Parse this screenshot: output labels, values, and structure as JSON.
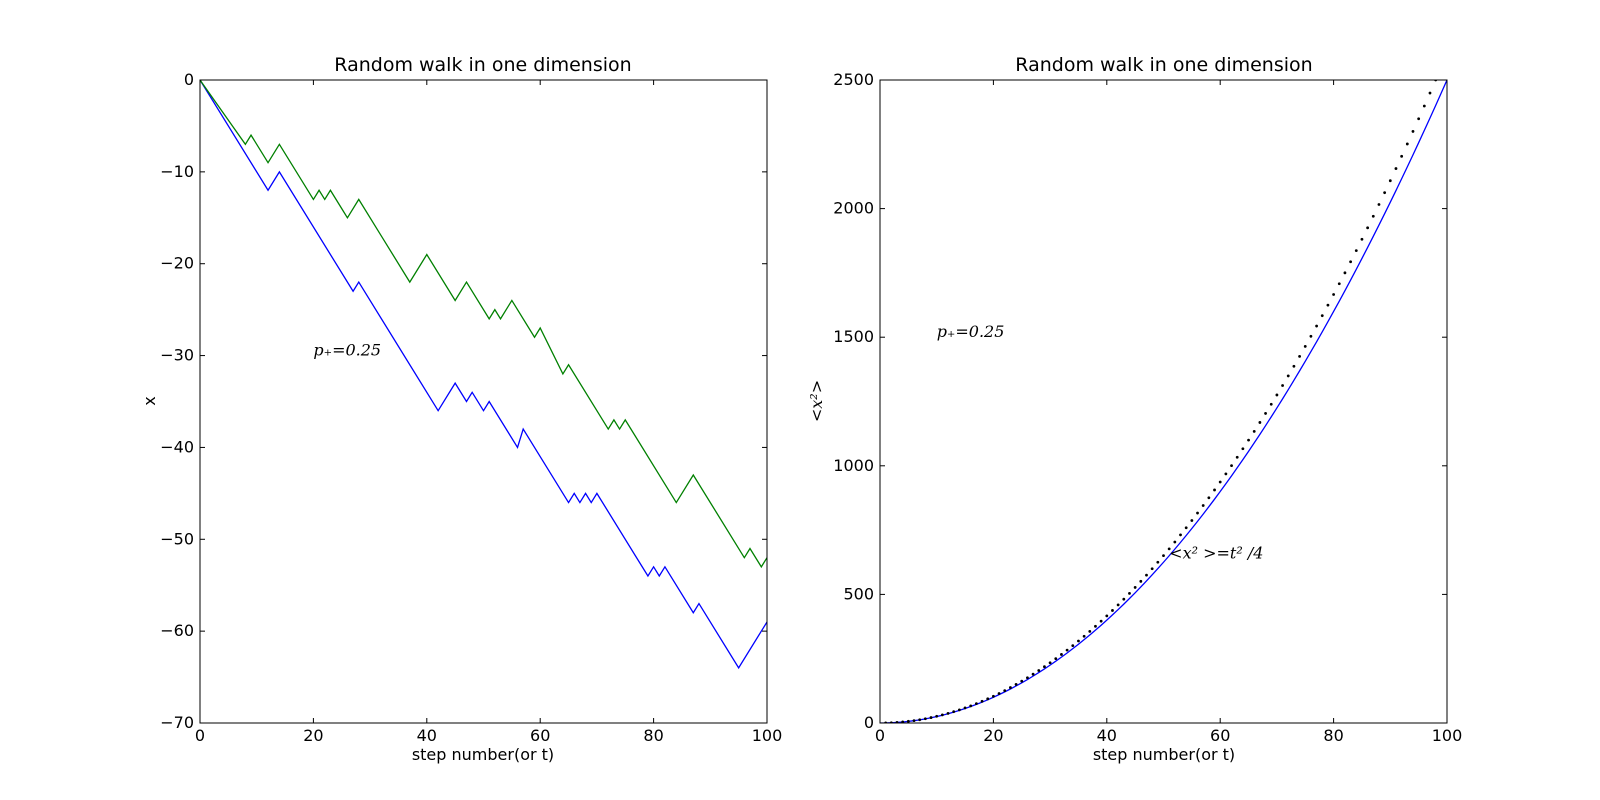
{
  "chart_data": [
    {
      "type": "line",
      "title": "Random walk in one dimension",
      "xlabel": "step number(or t)",
      "ylabel": "x",
      "xlim": [
        0,
        100
      ],
      "ylim": [
        -70,
        0
      ],
      "xticks": [
        0,
        20,
        40,
        60,
        80,
        100
      ],
      "yticks": [
        0,
        -10,
        -20,
        -30,
        -40,
        -50,
        -60,
        -70
      ],
      "xtick_labels": [
        "0",
        "20",
        "40",
        "60",
        "80",
        "100"
      ],
      "ytick_labels": [
        "0",
        "−10",
        "−20",
        "−30",
        "−40",
        "−50",
        "−60",
        "−70"
      ],
      "grid": false,
      "annotations": [
        {
          "text": "p₊=0.25",
          "x": 20,
          "y": -30
        }
      ],
      "series": [
        {
          "color": "#0000ff",
          "points": [
            [
              0,
              0
            ],
            [
              12,
              -12
            ],
            [
              14,
              -10
            ],
            [
              27,
              -23
            ],
            [
              28,
              -22
            ],
            [
              42,
              -36
            ],
            [
              45,
              -33
            ],
            [
              47,
              -35
            ],
            [
              48,
              -34
            ],
            [
              50,
              -36
            ],
            [
              51,
              -35
            ],
            [
              56,
              -40
            ],
            [
              57,
              -38
            ],
            [
              65,
              -46
            ],
            [
              66,
              -45
            ],
            [
              67,
              -46
            ],
            [
              68,
              -45
            ],
            [
              69,
              -46
            ],
            [
              70,
              -45
            ],
            [
              79,
              -54
            ],
            [
              80,
              -53
            ],
            [
              81,
              -54
            ],
            [
              82,
              -53
            ],
            [
              87,
              -58
            ],
            [
              88,
              -57
            ],
            [
              95,
              -64
            ],
            [
              100,
              -59
            ],
            [
              101,
              -60
            ]
          ]
        },
        {
          "color": "#008000",
          "points": [
            [
              0,
              0
            ],
            [
              8,
              -7
            ],
            [
              9,
              -6
            ],
            [
              12,
              -9
            ],
            [
              14,
              -7
            ],
            [
              20,
              -13
            ],
            [
              21,
              -12
            ],
            [
              22,
              -13
            ],
            [
              23,
              -12
            ],
            [
              25,
              -14
            ],
            [
              26,
              -15
            ],
            [
              28,
              -13
            ],
            [
              37,
              -22
            ],
            [
              40,
              -19
            ],
            [
              45,
              -24
            ],
            [
              47,
              -22
            ],
            [
              51,
              -26
            ],
            [
              52,
              -25
            ],
            [
              53,
              -26
            ],
            [
              55,
              -24
            ],
            [
              59,
              -28
            ],
            [
              60,
              -27
            ],
            [
              64,
              -32
            ],
            [
              65,
              -31
            ],
            [
              72,
              -38
            ],
            [
              73,
              -37
            ],
            [
              74,
              -38
            ],
            [
              75,
              -37
            ],
            [
              84,
              -46
            ],
            [
              87,
              -43
            ],
            [
              96,
              -52
            ],
            [
              97,
              -51
            ],
            [
              99,
              -53
            ],
            [
              100,
              -52
            ]
          ]
        }
      ]
    },
    {
      "type": "line",
      "title": "Random walk in one dimension",
      "xlabel": "step number(or t)",
      "ylabel": "<x²>",
      "xlim": [
        0,
        100
      ],
      "ylim": [
        0,
        2500
      ],
      "xticks": [
        0,
        20,
        40,
        60,
        80,
        100
      ],
      "yticks": [
        0,
        500,
        1000,
        1500,
        2000,
        2500
      ],
      "xtick_labels": [
        "0",
        "20",
        "40",
        "60",
        "80",
        "100"
      ],
      "ytick_labels": [
        "0",
        "500",
        "1000",
        "1500",
        "2000",
        "2500"
      ],
      "grid": false,
      "annotations": [
        {
          "text": "p₊=0.25",
          "x": 10,
          "y": 1500
        },
        {
          "text": "<x² >=t² /4",
          "x": 51,
          "y": 640
        }
      ],
      "series": [
        {
          "color": "#0000ff",
          "style": "solid",
          "formula": "t^2/4",
          "x_range": [
            0,
            100
          ]
        },
        {
          "color": "#000000",
          "style": "dotted",
          "formula": "empirical",
          "x_range": [
            0,
            100
          ],
          "end_value": 2500,
          "x_at_end": 98
        }
      ]
    }
  ]
}
